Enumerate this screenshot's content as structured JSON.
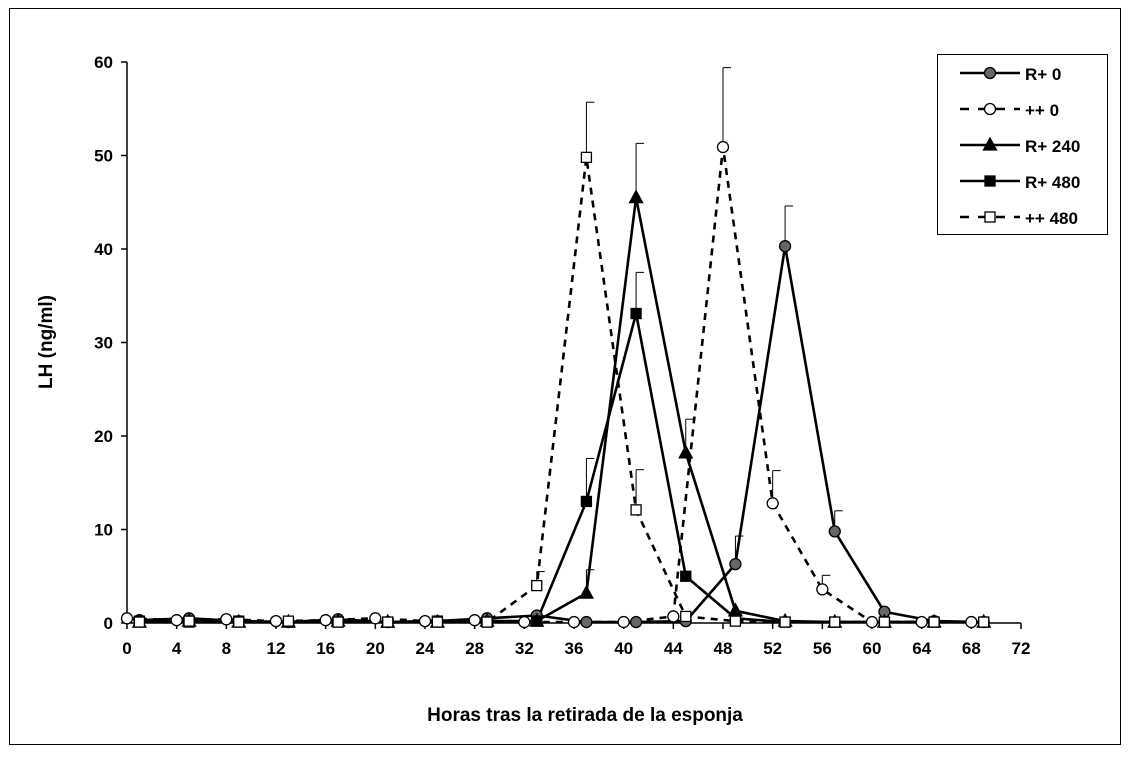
{
  "chart_data": {
    "type": "line",
    "title": "",
    "xlabel": "Horas tras la retirada de la esponja",
    "ylabel": "LH (ng/ml)",
    "xlim": [
      0,
      72
    ],
    "ylim": [
      0,
      60
    ],
    "x_ticks": [
      0,
      4,
      8,
      12,
      16,
      20,
      24,
      28,
      32,
      36,
      40,
      44,
      48,
      52,
      56,
      60,
      64,
      68,
      72
    ],
    "y_ticks": [
      0,
      10,
      20,
      30,
      40,
      50,
      60
    ],
    "grid": false,
    "legend_position": "top-right",
    "series": [
      {
        "name": "R+ 0",
        "line": "solid",
        "marker": "circle",
        "fill": "#666666",
        "x": [
          1,
          5,
          9,
          13,
          17,
          21,
          25,
          29,
          33,
          37,
          41,
          45,
          49,
          53,
          57,
          61,
          65,
          69
        ],
        "y": [
          0.3,
          0.5,
          0.2,
          0.1,
          0.4,
          0.1,
          0.2,
          0.5,
          0.8,
          0.1,
          0.1,
          0.2,
          6.3,
          40.3,
          9.8,
          1.2,
          0.2,
          0.1
        ],
        "err": [
          null,
          null,
          null,
          null,
          null,
          null,
          null,
          null,
          null,
          null,
          null,
          null,
          3.0,
          4.3,
          2.2,
          null,
          null,
          null
        ]
      },
      {
        "name": "++ 0",
        "line": "dashed",
        "marker": "circle",
        "fill": "#ffffff",
        "x": [
          0,
          4,
          8,
          12,
          16,
          20,
          24,
          28,
          32,
          36,
          40,
          44,
          48,
          52,
          56,
          60,
          64,
          68
        ],
        "y": [
          0.5,
          0.3,
          0.4,
          0.2,
          0.3,
          0.5,
          0.2,
          0.3,
          0.1,
          0.1,
          0.1,
          0.7,
          50.9,
          12.8,
          3.6,
          0.1,
          0.1,
          0.1
        ],
        "err": [
          null,
          null,
          null,
          null,
          null,
          null,
          null,
          null,
          null,
          null,
          null,
          null,
          8.5,
          3.5,
          1.5,
          null,
          null,
          null
        ]
      },
      {
        "name": "R+ 240",
        "line": "solid",
        "marker": "triangle",
        "fill": "#000000",
        "x": [
          1,
          5,
          9,
          13,
          17,
          21,
          25,
          29,
          33,
          37,
          41,
          45,
          49,
          53,
          57,
          61,
          65,
          69
        ],
        "y": [
          0.1,
          0.2,
          0.1,
          0.1,
          0.2,
          0.1,
          0.1,
          0.2,
          0.2,
          3.2,
          45.5,
          18.2,
          1.3,
          0.2,
          0.1,
          0.1,
          0.1,
          0.1
        ],
        "err": [
          null,
          null,
          null,
          null,
          null,
          null,
          null,
          null,
          null,
          2.5,
          5.8,
          3.6,
          null,
          null,
          null,
          null,
          null,
          null
        ]
      },
      {
        "name": "R+ 480",
        "line": "solid",
        "marker": "square",
        "fill": "#000000",
        "x": [
          1,
          5,
          9,
          13,
          17,
          21,
          25,
          29,
          33,
          37,
          41,
          45,
          49,
          53,
          57,
          61,
          65,
          69
        ],
        "y": [
          0.2,
          0.1,
          0.2,
          0.1,
          0.1,
          0.1,
          0.2,
          0.1,
          0.2,
          13.0,
          33.1,
          5.0,
          0.5,
          0.1,
          0.1,
          0.1,
          0.1,
          0.1
        ],
        "err": [
          null,
          null,
          null,
          null,
          null,
          null,
          null,
          null,
          null,
          4.6,
          4.4,
          null,
          null,
          null,
          null,
          null,
          null,
          null
        ]
      },
      {
        "name": "++ 480",
        "line": "dashed",
        "marker": "square",
        "fill": "#ffffff",
        "x": [
          1,
          5,
          9,
          13,
          17,
          21,
          25,
          29,
          33,
          37,
          41,
          45,
          49,
          53,
          57,
          61,
          65,
          69
        ],
        "y": [
          0.1,
          0.2,
          0.1,
          0.2,
          0.1,
          0.1,
          0.1,
          0.1,
          4.0,
          49.8,
          12.1,
          0.7,
          0.2,
          0.1,
          0.1,
          0.1,
          0.1,
          0.1
        ],
        "err": [
          null,
          null,
          null,
          null,
          null,
          null,
          null,
          null,
          1.5,
          5.9,
          4.3,
          null,
          null,
          null,
          null,
          null,
          null,
          null
        ]
      }
    ]
  }
}
